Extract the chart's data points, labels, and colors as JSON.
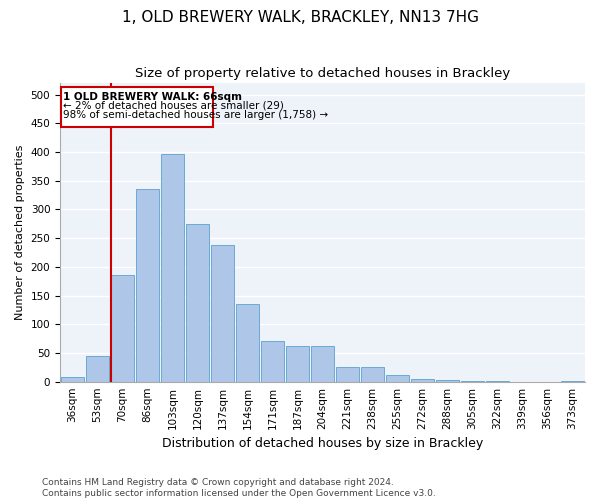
{
  "title": "1, OLD BREWERY WALK, BRACKLEY, NN13 7HG",
  "subtitle": "Size of property relative to detached houses in Brackley",
  "xlabel": "Distribution of detached houses by size in Brackley",
  "ylabel": "Number of detached properties",
  "categories": [
    "36sqm",
    "53sqm",
    "70sqm",
    "86sqm",
    "103sqm",
    "120sqm",
    "137sqm",
    "154sqm",
    "171sqm",
    "187sqm",
    "204sqm",
    "221sqm",
    "238sqm",
    "255sqm",
    "272sqm",
    "288sqm",
    "305sqm",
    "322sqm",
    "339sqm",
    "356sqm",
    "373sqm"
  ],
  "values": [
    8,
    45,
    185,
    335,
    397,
    275,
    238,
    135,
    70,
    62,
    62,
    25,
    25,
    12,
    5,
    3,
    1,
    1,
    0,
    0,
    2
  ],
  "bar_color": "#aec6e8",
  "bar_edge_color": "#6aaad4",
  "highlight_color": "#cc0000",
  "annotation_title": "1 OLD BREWERY WALK: 66sqm",
  "annotation_line1": "← 2% of detached houses are smaller (29)",
  "annotation_line2": "98% of semi-detached houses are larger (1,758) →",
  "annotation_box_color": "#cc0000",
  "ylim": [
    0,
    520
  ],
  "yticks": [
    0,
    50,
    100,
    150,
    200,
    250,
    300,
    350,
    400,
    450,
    500
  ],
  "background_color": "#eef2f9",
  "grid_color": "#ffffff",
  "footer_line1": "Contains HM Land Registry data © Crown copyright and database right 2024.",
  "footer_line2": "Contains public sector information licensed under the Open Government Licence v3.0.",
  "title_fontsize": 11,
  "subtitle_fontsize": 9.5,
  "xlabel_fontsize": 9,
  "ylabel_fontsize": 8,
  "tick_fontsize": 7.5,
  "annotation_fontsize": 7.5,
  "footer_fontsize": 6.5
}
